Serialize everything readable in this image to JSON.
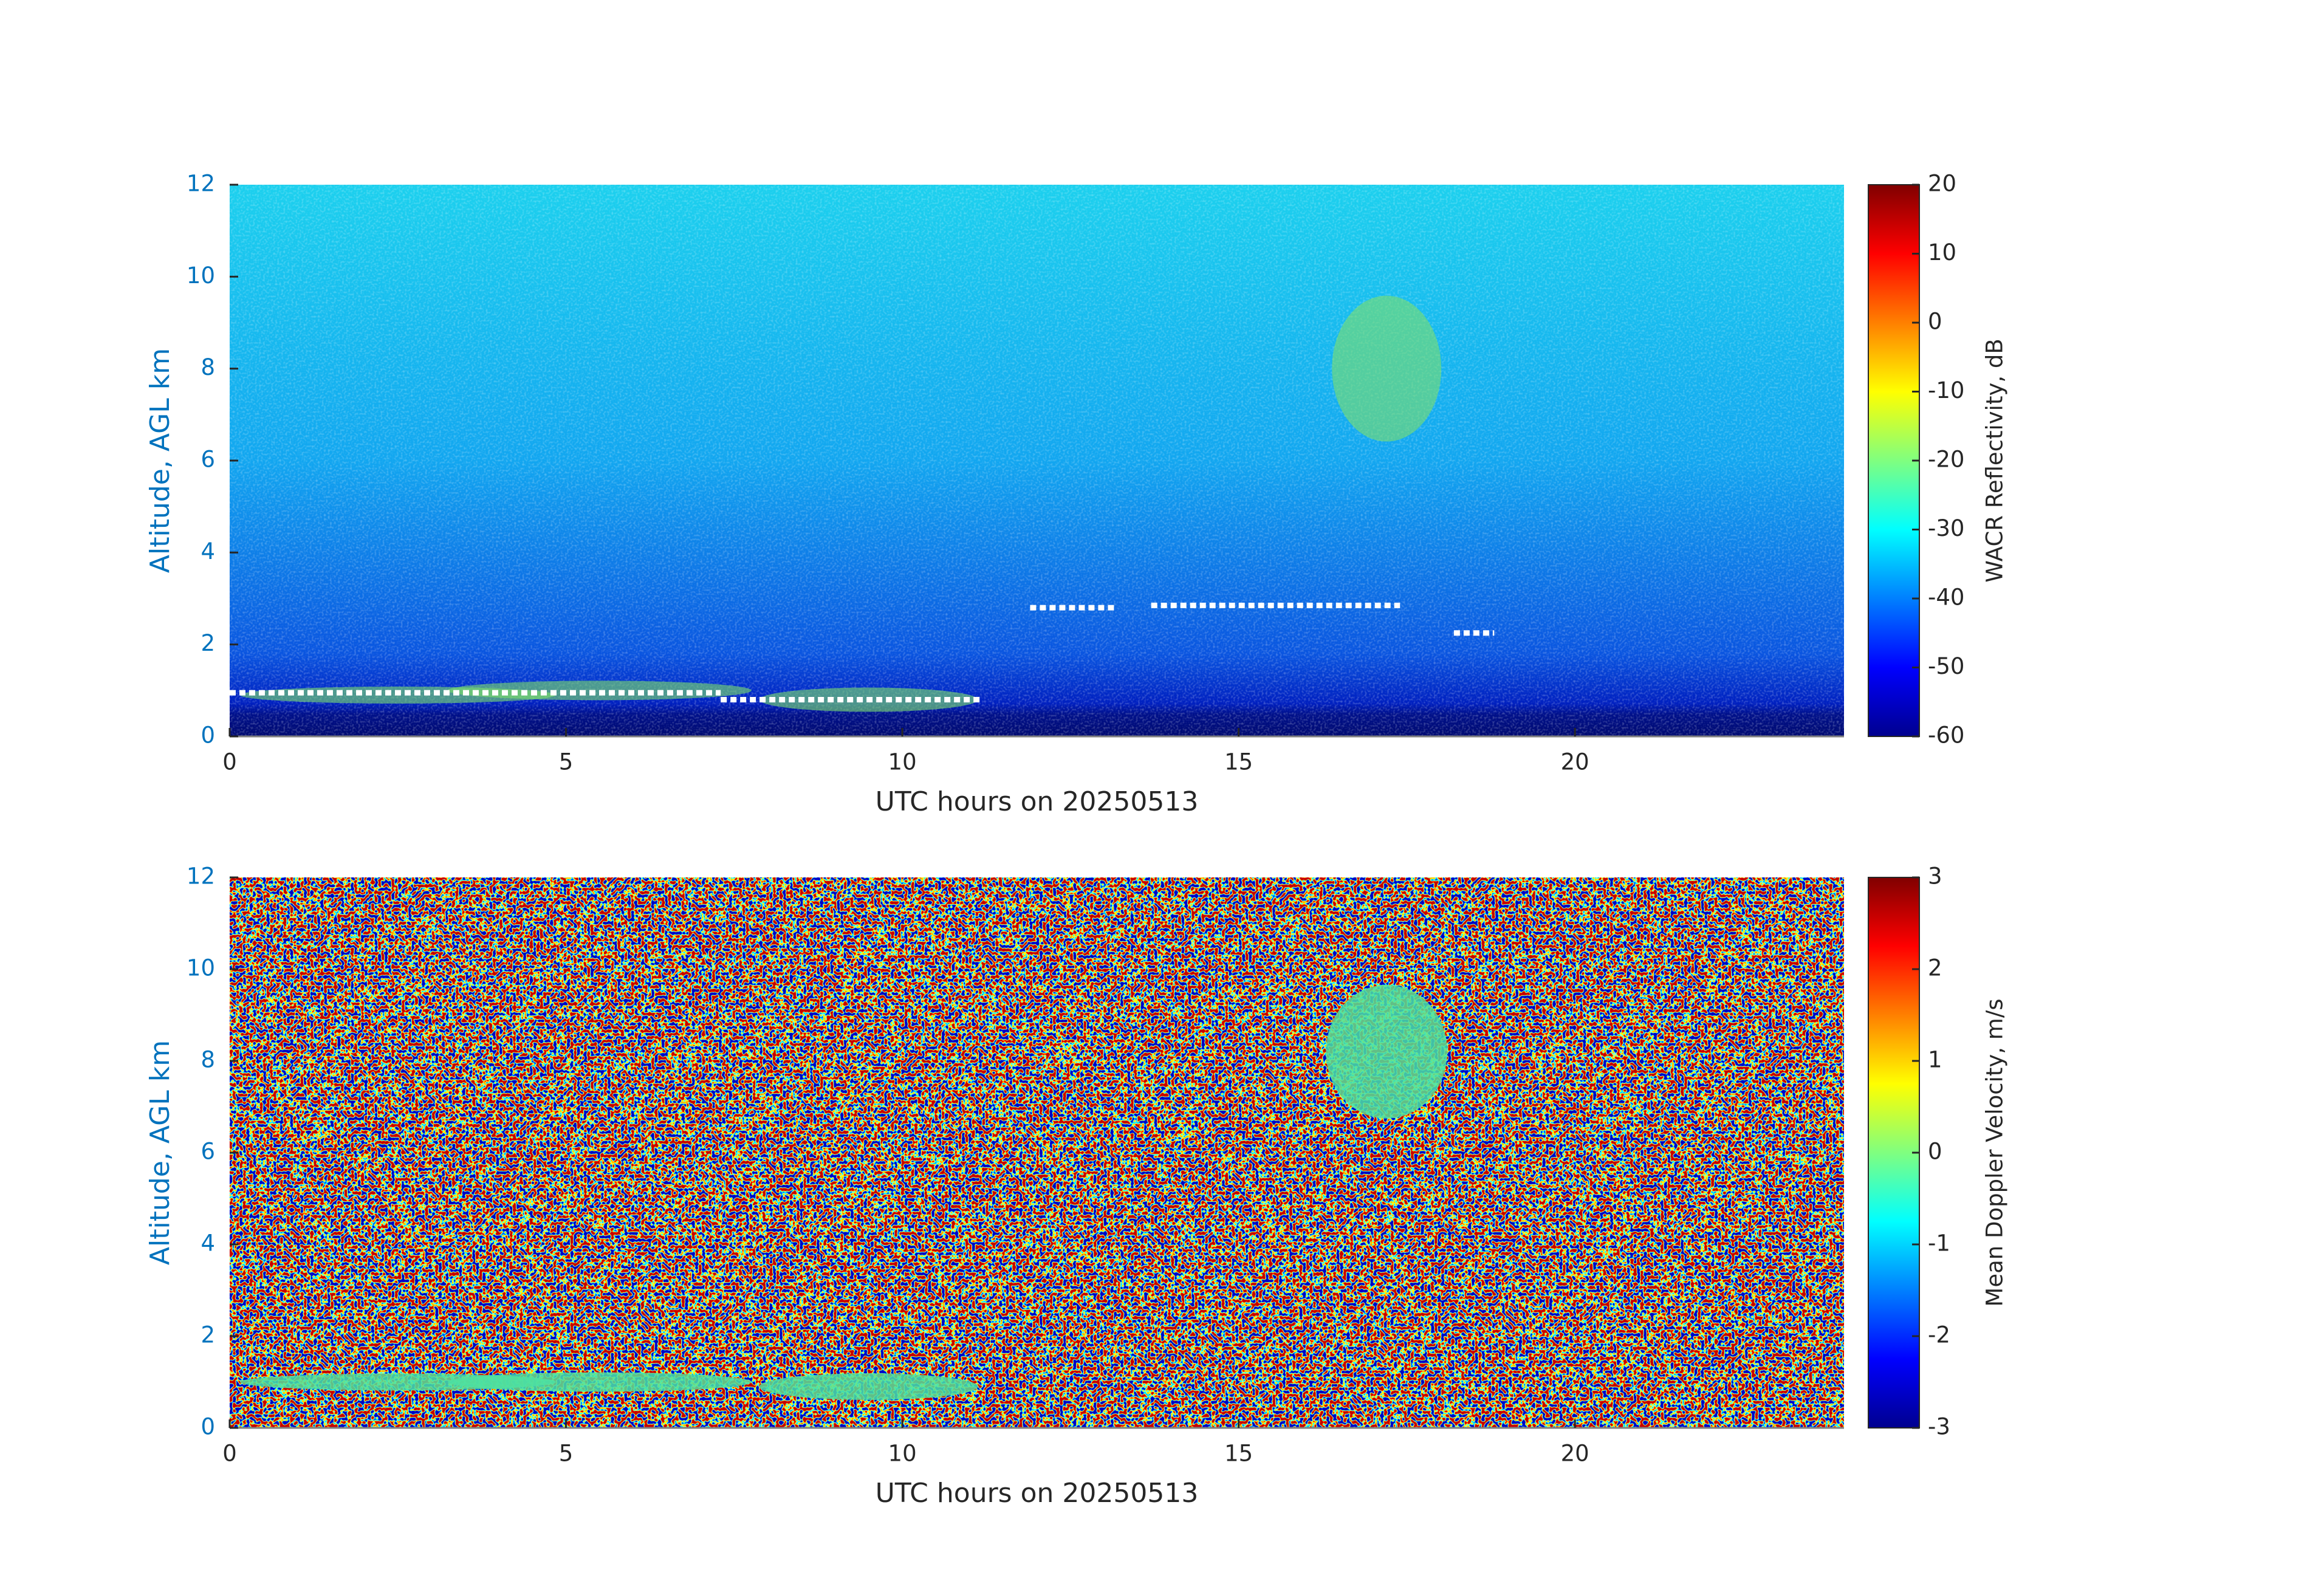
{
  "chart_data": [
    {
      "type": "heatmap",
      "colormap": "jet",
      "xlabel": "UTC hours on 20250513",
      "ylabel": "Altitude, AGL km",
      "xlim": [
        0,
        24
      ],
      "ylim": [
        0,
        12
      ],
      "xticks": [
        0,
        5,
        10,
        15,
        20
      ],
      "yticks": [
        0,
        2,
        4,
        6,
        8,
        10,
        12
      ],
      "colorbar": {
        "label": "WACR Reflectivity, dB",
        "lim": [
          -60,
          20
        ],
        "ticks": [
          -60,
          -50,
          -40,
          -30,
          -20,
          -10,
          0,
          10,
          20
        ]
      }
    },
    {
      "type": "heatmap",
      "colormap": "jet",
      "xlabel": "UTC hours on 20250513",
      "ylabel": "Altitude, AGL km",
      "xlim": [
        0,
        24
      ],
      "ylim": [
        0,
        12
      ],
      "xticks": [
        0,
        5,
        10,
        15,
        20
      ],
      "yticks": [
        0,
        2,
        4,
        6,
        8,
        10,
        12
      ],
      "colorbar": {
        "label": "Mean Doppler Velocity, m/s",
        "lim": [
          -3,
          3
        ],
        "ticks": [
          -3,
          -2,
          -1,
          0,
          1,
          2,
          3
        ]
      }
    }
  ]
}
